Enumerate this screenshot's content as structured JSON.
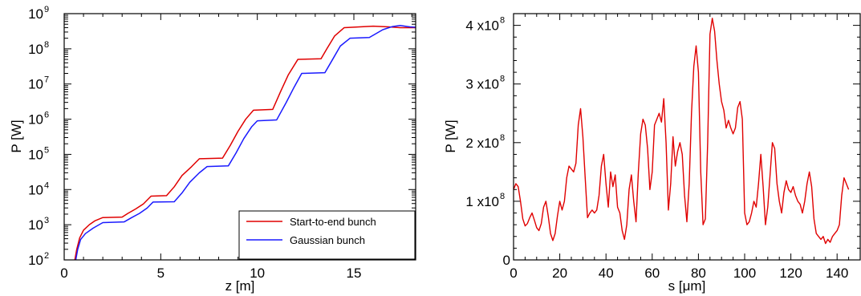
{
  "chart_data": [
    {
      "type": "line",
      "xlabel": "z [m]",
      "ylabel": "P [W]",
      "xlim": [
        0,
        18.2
      ],
      "ylim": [
        100,
        1000000000
      ],
      "yscale": "log",
      "xticks": [
        0,
        5,
        10,
        15
      ],
      "xtick_labels": [
        "0",
        "5",
        "10",
        "15"
      ],
      "ytick_mantissa": "10",
      "ytick_exponents": [
        "2",
        "3",
        "4",
        "5",
        "6",
        "7",
        "8",
        "9"
      ],
      "grid": false,
      "legend_position": "bottom-right",
      "series": [
        {
          "name": "Start-to-end bunch",
          "color": "#e00000",
          "points": [
            [
              0.55,
              100
            ],
            [
              0.65,
              200
            ],
            [
              0.8,
              420
            ],
            [
              1.0,
              700
            ],
            [
              1.3,
              1000
            ],
            [
              1.6,
              1300
            ],
            [
              2.0,
              1600
            ],
            [
              3.0,
              1650
            ],
            [
              3.3,
              2100
            ],
            [
              3.7,
              2800
            ],
            [
              4.1,
              3900
            ],
            [
              4.5,
              6500
            ],
            [
              5.3,
              6700
            ],
            [
              5.7,
              12000
            ],
            [
              6.1,
              25000
            ],
            [
              6.6,
              45000
            ],
            [
              7.0,
              75000
            ],
            [
              8.2,
              78000
            ],
            [
              8.6,
              180000
            ],
            [
              9.0,
              450000
            ],
            [
              9.4,
              1000000
            ],
            [
              9.8,
              1800000
            ],
            [
              10.8,
              1900000
            ],
            [
              11.2,
              6000000
            ],
            [
              11.6,
              18000000
            ],
            [
              12.1,
              50000000
            ],
            [
              13.3,
              52000000
            ],
            [
              13.6,
              100000000
            ],
            [
              14.0,
              230000000
            ],
            [
              14.5,
              400000000
            ],
            [
              15.3,
              420000000
            ],
            [
              16.0,
              440000000
            ],
            [
              16.8,
              420000000
            ],
            [
              17.4,
              400000000
            ],
            [
              18.2,
              400000000
            ]
          ]
        },
        {
          "name": "Gaussian bunch",
          "color": "#1a1aff",
          "points": [
            [
              0.6,
              100
            ],
            [
              0.7,
              200
            ],
            [
              0.85,
              380
            ],
            [
              1.1,
              560
            ],
            [
              1.5,
              800
            ],
            [
              2.0,
              1150
            ],
            [
              3.1,
              1200
            ],
            [
              3.5,
              1600
            ],
            [
              3.9,
              2100
            ],
            [
              4.3,
              3000
            ],
            [
              4.6,
              4400
            ],
            [
              5.7,
              4500
            ],
            [
              6.1,
              8000
            ],
            [
              6.5,
              16000
            ],
            [
              7.0,
              30000
            ],
            [
              7.4,
              45000
            ],
            [
              8.5,
              47000
            ],
            [
              8.9,
              110000
            ],
            [
              9.3,
              280000
            ],
            [
              9.7,
              600000
            ],
            [
              10.0,
              900000
            ],
            [
              11.0,
              950000
            ],
            [
              11.5,
              3000000
            ],
            [
              11.9,
              8000000
            ],
            [
              12.3,
              20000000
            ],
            [
              13.5,
              21000000
            ],
            [
              13.9,
              50000000
            ],
            [
              14.3,
              120000000
            ],
            [
              14.8,
              200000000
            ],
            [
              15.8,
              210000000
            ],
            [
              16.5,
              350000000
            ],
            [
              17.0,
              430000000
            ],
            [
              17.4,
              460000000
            ],
            [
              17.9,
              420000000
            ],
            [
              18.2,
              410000000
            ]
          ]
        }
      ]
    },
    {
      "type": "line",
      "xlabel": "s [μm]",
      "ylabel": "P [W]",
      "xlim": [
        0,
        150
      ],
      "ylim": [
        0,
        420000000
      ],
      "yscale": "linear",
      "xticks": [
        0,
        20,
        40,
        60,
        80,
        100,
        120,
        140
      ],
      "xtick_labels": [
        "0",
        "20",
        "40",
        "60",
        "80",
        "100",
        "120",
        "140"
      ],
      "yticks": [
        0,
        100000000,
        200000000,
        300000000,
        400000000
      ],
      "ytick_labels": [
        "0",
        "1 x10",
        "2 x10",
        "3 x10",
        "4 x10"
      ],
      "ytick_exponents": [
        "",
        "8",
        "8",
        "8",
        "8"
      ],
      "grid": false,
      "series": [
        {
          "color": "#e00000",
          "points": [
            [
              0,
              120000000
            ],
            [
              1,
              130000000
            ],
            [
              2,
              125000000
            ],
            [
              3,
              100000000
            ],
            [
              4,
              70000000
            ],
            [
              5,
              58000000
            ],
            [
              6,
              62000000
            ],
            [
              7,
              72000000
            ],
            [
              8,
              80000000
            ],
            [
              9,
              68000000
            ],
            [
              10,
              55000000
            ],
            [
              11,
              50000000
            ],
            [
              12,
              62000000
            ],
            [
              13,
              90000000
            ],
            [
              14,
              100000000
            ],
            [
              15,
              75000000
            ],
            [
              16,
              45000000
            ],
            [
              17,
              33000000
            ],
            [
              18,
              45000000
            ],
            [
              19,
              75000000
            ],
            [
              20,
              100000000
            ],
            [
              21,
              85000000
            ],
            [
              22,
              100000000
            ],
            [
              23,
              140000000
            ],
            [
              24,
              160000000
            ],
            [
              25,
              155000000
            ],
            [
              26,
              150000000
            ],
            [
              27,
              165000000
            ],
            [
              28,
              230000000
            ],
            [
              29,
              258000000
            ],
            [
              30,
              210000000
            ],
            [
              31,
              140000000
            ],
            [
              32,
              72000000
            ],
            [
              33,
              80000000
            ],
            [
              34,
              85000000
            ],
            [
              35,
              80000000
            ],
            [
              36,
              85000000
            ],
            [
              37,
              110000000
            ],
            [
              38,
              160000000
            ],
            [
              39,
              180000000
            ],
            [
              40,
              130000000
            ],
            [
              41,
              90000000
            ],
            [
              42,
              150000000
            ],
            [
              43,
              125000000
            ],
            [
              44,
              145000000
            ],
            [
              45,
              90000000
            ],
            [
              46,
              80000000
            ],
            [
              47,
              50000000
            ],
            [
              48,
              35000000
            ],
            [
              49,
              60000000
            ],
            [
              50,
              120000000
            ],
            [
              51,
              145000000
            ],
            [
              52,
              100000000
            ],
            [
              53,
              65000000
            ],
            [
              54,
              150000000
            ],
            [
              55,
              215000000
            ],
            [
              56,
              240000000
            ],
            [
              57,
              230000000
            ],
            [
              58,
              190000000
            ],
            [
              59,
              120000000
            ],
            [
              60,
              150000000
            ],
            [
              61,
              230000000
            ],
            [
              62,
              240000000
            ],
            [
              63,
              250000000
            ],
            [
              64,
              235000000
            ],
            [
              65,
              275000000
            ],
            [
              66,
              200000000
            ],
            [
              67,
              85000000
            ],
            [
              68,
              130000000
            ],
            [
              69,
              210000000
            ],
            [
              70,
              160000000
            ],
            [
              71,
              185000000
            ],
            [
              72,
              200000000
            ],
            [
              73,
              180000000
            ],
            [
              74,
              110000000
            ],
            [
              75,
              65000000
            ],
            [
              76,
              130000000
            ],
            [
              77,
              250000000
            ],
            [
              78,
              330000000
            ],
            [
              79,
              365000000
            ],
            [
              80,
              320000000
            ],
            [
              81,
              150000000
            ],
            [
              82,
              60000000
            ],
            [
              83,
              70000000
            ],
            [
              84,
              200000000
            ],
            [
              85,
              385000000
            ],
            [
              86,
              412000000
            ],
            [
              87,
              390000000
            ],
            [
              88,
              340000000
            ],
            [
              89,
              300000000
            ],
            [
              90,
              270000000
            ],
            [
              91,
              255000000
            ],
            [
              92,
              225000000
            ],
            [
              93,
              238000000
            ],
            [
              94,
              225000000
            ],
            [
              95,
              215000000
            ],
            [
              96,
              225000000
            ],
            [
              97,
              260000000
            ],
            [
              98,
              270000000
            ],
            [
              99,
              240000000
            ],
            [
              100,
              80000000
            ],
            [
              101,
              60000000
            ],
            [
              102,
              65000000
            ],
            [
              103,
              80000000
            ],
            [
              104,
              100000000
            ],
            [
              105,
              90000000
            ],
            [
              106,
              130000000
            ],
            [
              107,
              180000000
            ],
            [
              108,
              125000000
            ],
            [
              109,
              60000000
            ],
            [
              110,
              90000000
            ],
            [
              111,
              145000000
            ],
            [
              112,
              200000000
            ],
            [
              113,
              190000000
            ],
            [
              114,
              130000000
            ],
            [
              115,
              100000000
            ],
            [
              116,
              80000000
            ],
            [
              117,
              115000000
            ],
            [
              118,
              135000000
            ],
            [
              119,
              120000000
            ],
            [
              120,
              115000000
            ],
            [
              121,
              125000000
            ],
            [
              122,
              110000000
            ],
            [
              123,
              100000000
            ],
            [
              124,
              95000000
            ],
            [
              125,
              80000000
            ],
            [
              126,
              100000000
            ],
            [
              127,
              130000000
            ],
            [
              128,
              150000000
            ],
            [
              129,
              125000000
            ],
            [
              130,
              70000000
            ],
            [
              131,
              45000000
            ],
            [
              132,
              40000000
            ],
            [
              133,
              35000000
            ],
            [
              134,
              40000000
            ],
            [
              135,
              28000000
            ],
            [
              136,
              35000000
            ],
            [
              137,
              30000000
            ],
            [
              138,
              40000000
            ],
            [
              139,
              45000000
            ],
            [
              140,
              50000000
            ],
            [
              141,
              60000000
            ],
            [
              142,
              110000000
            ],
            [
              143,
              140000000
            ],
            [
              144,
              130000000
            ],
            [
              145,
              120000000
            ]
          ]
        }
      ]
    }
  ]
}
